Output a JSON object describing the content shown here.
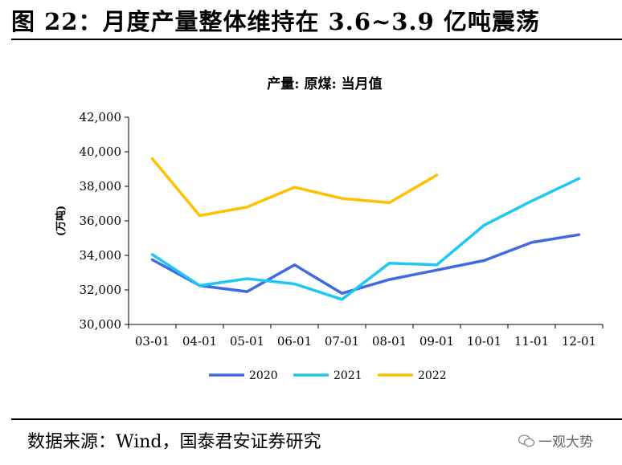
{
  "figure": {
    "title": "图 22：月度产量整体维持在 3.6~3.9 亿吨震荡",
    "source": "数据来源：Wind，国泰君安证券研究",
    "watermark": "一观大势"
  },
  "chart_data": {
    "type": "line",
    "title": "产量: 原煤: 当月值",
    "ylabel": "(万吨)",
    "xlabel": "",
    "categories": [
      "03-01",
      "04-01",
      "05-01",
      "06-01",
      "07-01",
      "08-01",
      "09-01",
      "10-01",
      "11-01",
      "12-01"
    ],
    "ylim": [
      30000,
      42000
    ],
    "yticks": [
      30000,
      32000,
      34000,
      36000,
      38000,
      40000,
      42000
    ],
    "ytick_labels": [
      "30,000",
      "32,000",
      "34,000",
      "36,000",
      "38,000",
      "40,000",
      "42,000"
    ],
    "grid": false,
    "legend_position": "bottom",
    "series": [
      {
        "name": "2020",
        "color": "#4169e1",
        "values": [
          33750,
          32250,
          31900,
          33450,
          31800,
          32600,
          33150,
          33700,
          34750,
          35200
        ]
      },
      {
        "name": "2021",
        "color": "#1ec8f2",
        "values": [
          34050,
          32250,
          32650,
          32350,
          31450,
          33550,
          33450,
          35750,
          37150,
          38450
        ]
      },
      {
        "name": "2022",
        "color": "#ffc000",
        "values": [
          39600,
          36300,
          36800,
          37950,
          37300,
          37050,
          38650,
          null,
          null,
          null
        ]
      }
    ]
  }
}
